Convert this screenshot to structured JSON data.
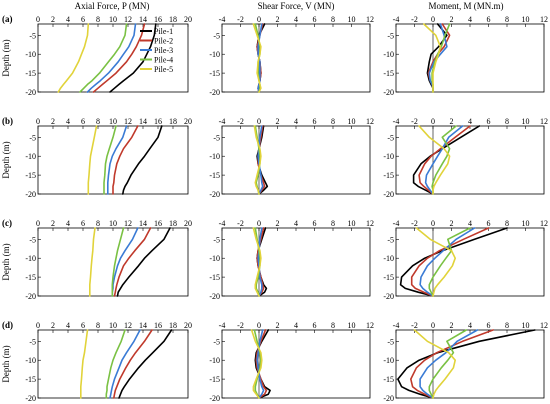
{
  "chart_data": {
    "type": "line",
    "column_titles": [
      "Axial Force, P (MN)",
      "Shear Force, V (MN)",
      "Moment, M (MN.m)"
    ],
    "row_labels": [
      "(a)",
      "(b)",
      "(c)",
      "(d)"
    ],
    "ylabel": "Depth (m)",
    "ylim": [
      -20,
      -2
    ],
    "yticks": [
      -5,
      -10,
      -15,
      -20
    ],
    "xlims": [
      [
        0,
        20
      ],
      [
        -4,
        12
      ],
      [
        -4,
        12
      ]
    ],
    "xticks": [
      [
        0,
        2,
        4,
        6,
        8,
        10,
        12,
        14,
        16,
        18,
        20
      ],
      [
        -4,
        -2,
        0,
        2,
        4,
        6,
        8,
        10,
        12
      ],
      [
        -4,
        -2,
        0,
        2,
        4,
        6,
        8,
        10,
        12
      ]
    ],
    "legend": {
      "position": "top-right",
      "entries": [
        "Pile-1",
        "Pile-2",
        "Pile-3",
        "Pile-4",
        "Pile-5"
      ],
      "colors": [
        "#000000",
        "#c0392b",
        "#3a7bd5",
        "#7ac143",
        "#e1d33a"
      ]
    },
    "depths": [
      -2,
      -5,
      -8,
      -10,
      -12,
      -15,
      -17,
      -18,
      -19,
      -20
    ],
    "panels": [
      {
        "row": "(a)",
        "quantity": "axial",
        "series": [
          {
            "name": "Pile-1",
            "x": [
              15.7,
              15.5,
              15.0,
              14.5,
              14.0,
              12.7,
              11.4,
              10.8,
              10.2,
              9.6
            ]
          },
          {
            "name": "Pile-2",
            "x": [
              14.2,
              13.8,
              13.1,
              12.5,
              11.8,
              10.4,
              9.2,
              8.6,
              8.0,
              7.4
            ]
          },
          {
            "name": "Pile-3",
            "x": [
              13.0,
              12.8,
              12.1,
              11.4,
              10.7,
              9.4,
              8.3,
              7.7,
              7.1,
              6.6
            ]
          },
          {
            "name": "Pile-4",
            "x": [
              11.8,
              11.6,
              10.9,
              10.2,
              9.4,
              8.2,
              7.2,
              6.6,
              6.1,
              5.6
            ]
          },
          {
            "name": "Pile-5",
            "x": [
              6.7,
              6.6,
              6.2,
              5.8,
              5.4,
              4.6,
              3.8,
              3.4,
              3.0,
              2.7
            ]
          }
        ]
      },
      {
        "row": "(a)",
        "quantity": "shear",
        "series": [
          {
            "name": "Pile-1",
            "x": [
              0.6,
              0.0,
              -0.2,
              -0.1,
              0.1,
              0.2,
              0.1,
              0.0,
              -0.1,
              0.0
            ]
          },
          {
            "name": "Pile-2",
            "x": [
              0.4,
              0.1,
              -0.2,
              -0.1,
              0.1,
              0.2,
              0.1,
              0.0,
              -0.1,
              0.0
            ]
          },
          {
            "name": "Pile-3",
            "x": [
              0.3,
              0.1,
              -0.1,
              -0.1,
              0.1,
              0.1,
              0.1,
              0.0,
              -0.1,
              0.0
            ]
          },
          {
            "name": "Pile-4",
            "x": [
              -0.4,
              -0.1,
              0.1,
              0.1,
              -0.1,
              -0.1,
              0.0,
              0.1,
              0.1,
              0.0
            ]
          },
          {
            "name": "Pile-5",
            "x": [
              -0.6,
              -0.2,
              0.2,
              0.1,
              -0.1,
              -0.2,
              0.0,
              0.1,
              0.2,
              0.0
            ]
          }
        ]
      },
      {
        "row": "(a)",
        "quantity": "moment",
        "series": [
          {
            "name": "Pile-1",
            "x": [
              0.5,
              1.5,
              0.6,
              -0.2,
              -0.4,
              -0.6,
              -0.4,
              -0.2,
              0.0,
              0.0
            ]
          },
          {
            "name": "Pile-2",
            "x": [
              1.0,
              1.8,
              1.2,
              0.5,
              0.0,
              -0.5,
              -0.3,
              -0.1,
              0.0,
              0.0
            ]
          },
          {
            "name": "Pile-3",
            "x": [
              0.8,
              1.2,
              1.5,
              0.8,
              0.1,
              -0.4,
              -0.3,
              -0.1,
              0.0,
              0.0
            ]
          },
          {
            "name": "Pile-4",
            "x": [
              1.8,
              1.3,
              0.9,
              0.5,
              0.2,
              -0.1,
              -0.1,
              0.0,
              0.0,
              0.0
            ]
          },
          {
            "name": "Pile-5",
            "x": [
              -1.0,
              0.3,
              0.8,
              0.6,
              0.3,
              0.0,
              0.0,
              0.0,
              0.0,
              0.0
            ]
          }
        ]
      },
      {
        "row": "(b)",
        "quantity": "axial",
        "series": [
          {
            "name": "Pile-1",
            "x": [
              16.5,
              16.0,
              14.9,
              14.2,
              13.4,
              12.4,
              11.9,
              11.6,
              11.4,
              11.3
            ]
          },
          {
            "name": "Pile-2",
            "x": [
              13.3,
              12.5,
              11.4,
              10.9,
              10.5,
              10.2,
              10.1,
              10.0,
              10.0,
              10.0
            ]
          },
          {
            "name": "Pile-3",
            "x": [
              11.8,
              11.3,
              10.4,
              9.9,
              9.6,
              9.4,
              9.3,
              9.3,
              9.3,
              9.3
            ]
          },
          {
            "name": "Pile-4",
            "x": [
              10.4,
              10.0,
              9.5,
              9.2,
              9.0,
              8.9,
              8.8,
              8.8,
              8.8,
              8.8
            ]
          },
          {
            "name": "Pile-5",
            "x": [
              7.8,
              7.5,
              7.2,
              7.0,
              6.9,
              6.8,
              6.7,
              6.7,
              6.7,
              6.7
            ]
          }
        ]
      },
      {
        "row": "(b)",
        "quantity": "shear",
        "series": [
          {
            "name": "Pile-1",
            "x": [
              0.5,
              0.3,
              0.0,
              -0.2,
              -0.1,
              0.3,
              0.7,
              0.9,
              0.5,
              0.0
            ]
          },
          {
            "name": "Pile-2",
            "x": [
              0.4,
              0.2,
              0.0,
              -0.1,
              -0.1,
              0.2,
              0.5,
              0.6,
              0.3,
              0.0
            ]
          },
          {
            "name": "Pile-3",
            "x": [
              0.3,
              0.1,
              0.0,
              -0.1,
              0.0,
              0.2,
              0.3,
              0.4,
              0.2,
              0.0
            ]
          },
          {
            "name": "Pile-4",
            "x": [
              -0.4,
              -0.2,
              0.0,
              0.1,
              0.1,
              -0.1,
              -0.3,
              -0.2,
              -0.1,
              0.0
            ]
          },
          {
            "name": "Pile-5",
            "x": [
              -0.5,
              -0.3,
              0.1,
              0.2,
              0.1,
              -0.2,
              -0.4,
              -0.3,
              -0.1,
              0.0
            ]
          }
        ]
      },
      {
        "row": "(b)",
        "quantity": "moment",
        "series": [
          {
            "name": "Pile-1",
            "x": [
              5.0,
              3.0,
              1.0,
              -0.3,
              -1.3,
              -2.1,
              -2.1,
              -1.6,
              -0.8,
              0.0
            ]
          },
          {
            "name": "Pile-2",
            "x": [
              4.0,
              2.4,
              0.8,
              -0.2,
              -0.9,
              -1.5,
              -1.4,
              -1.0,
              -0.5,
              0.0
            ]
          },
          {
            "name": "Pile-3",
            "x": [
              3.2,
              1.7,
              1.0,
              0.5,
              0.0,
              -0.7,
              -0.8,
              -0.6,
              -0.3,
              0.0
            ]
          },
          {
            "name": "Pile-4",
            "x": [
              2.5,
              1.0,
              1.8,
              1.5,
              1.0,
              0.3,
              0.0,
              -0.1,
              0.0,
              0.0
            ]
          },
          {
            "name": "Pile-5",
            "x": [
              -1.5,
              -0.4,
              1.2,
              1.8,
              1.6,
              0.8,
              0.3,
              0.1,
              0.0,
              0.0
            ]
          }
        ]
      },
      {
        "row": "(c)",
        "quantity": "axial",
        "series": [
          {
            "name": "Pile-1",
            "x": [
              17.6,
              16.8,
              15.2,
              14.2,
              13.4,
              12.1,
              11.3,
              11.0,
              10.7,
              10.6
            ]
          },
          {
            "name": "Pile-2",
            "x": [
              15.0,
              14.2,
              12.9,
              12.1,
              11.4,
              10.8,
              10.5,
              10.4,
              10.3,
              10.2
            ]
          },
          {
            "name": "Pile-3",
            "x": [
              13.3,
              12.6,
              11.6,
              11.0,
              10.6,
              10.2,
              10.0,
              10.0,
              9.9,
              9.9
            ]
          },
          {
            "name": "Pile-4",
            "x": [
              11.4,
              11.0,
              10.6,
              10.4,
              10.2,
              10.0,
              9.9,
              9.9,
              9.9,
              9.9
            ]
          },
          {
            "name": "Pile-5",
            "x": [
              7.6,
              7.4,
              7.3,
              7.2,
              7.1,
              7.0,
              6.9,
              6.9,
              6.9,
              6.9
            ]
          }
        ]
      },
      {
        "row": "(c)",
        "quantity": "shear",
        "series": [
          {
            "name": "Pile-1",
            "x": [
              0.7,
              0.3,
              -0.1,
              -0.2,
              -0.1,
              0.2,
              0.5,
              0.8,
              0.6,
              0.0
            ]
          },
          {
            "name": "Pile-2",
            "x": [
              0.5,
              0.2,
              -0.1,
              -0.2,
              -0.1,
              0.2,
              0.4,
              0.5,
              0.3,
              0.0
            ]
          },
          {
            "name": "Pile-3",
            "x": [
              0.3,
              0.1,
              0.0,
              -0.1,
              0.0,
              0.1,
              0.3,
              0.3,
              0.2,
              0.0
            ]
          },
          {
            "name": "Pile-4",
            "x": [
              -0.4,
              -0.2,
              0.0,
              0.1,
              0.1,
              -0.1,
              -0.3,
              -0.3,
              -0.1,
              0.0
            ]
          },
          {
            "name": "Pile-5",
            "x": [
              -0.6,
              -0.3,
              0.1,
              0.2,
              0.1,
              -0.2,
              -0.4,
              -0.4,
              -0.2,
              0.0
            ]
          }
        ]
      },
      {
        "row": "(c)",
        "quantity": "moment",
        "series": [
          {
            "name": "Pile-1",
            "x": [
              8.0,
              4.5,
              1.0,
              -0.9,
              -2.2,
              -3.4,
              -3.5,
              -3.0,
              -1.6,
              0.0
            ]
          },
          {
            "name": "Pile-2",
            "x": [
              6.0,
              3.3,
              0.7,
              -0.6,
              -1.5,
              -2.3,
              -2.3,
              -1.9,
              -1.0,
              0.0
            ]
          },
          {
            "name": "Pile-3",
            "x": [
              4.5,
              2.5,
              1.1,
              0.2,
              -0.6,
              -1.3,
              -1.4,
              -1.1,
              -0.6,
              0.0
            ]
          },
          {
            "name": "Pile-4",
            "x": [
              4.0,
              1.6,
              2.0,
              1.4,
              0.8,
              0.0,
              -0.4,
              -0.4,
              -0.2,
              0.0
            ]
          },
          {
            "name": "Pile-5",
            "x": [
              -1.8,
              -0.3,
              2.0,
              2.4,
              2.1,
              1.2,
              0.5,
              0.2,
              0.1,
              0.0
            ]
          }
        ]
      },
      {
        "row": "(d)",
        "quantity": "axial",
        "series": [
          {
            "name": "Pile-1",
            "x": [
              17.8,
              16.8,
              15.3,
              14.3,
              13.4,
              12.2,
              11.5,
              11.2,
              11.0,
              10.8
            ]
          },
          {
            "name": "Pile-2",
            "x": [
              15.2,
              14.2,
              13.0,
              12.3,
              11.7,
              10.9,
              10.5,
              10.3,
              10.2,
              10.1
            ]
          },
          {
            "name": "Pile-3",
            "x": [
              13.6,
              12.8,
              11.8,
              11.2,
              10.8,
              10.2,
              9.9,
              9.8,
              9.7,
              9.6
            ]
          },
          {
            "name": "Pile-4",
            "x": [
              11.6,
              11.1,
              10.4,
              10.0,
              9.7,
              9.4,
              9.2,
              9.2,
              9.1,
              9.1
            ]
          },
          {
            "name": "Pile-5",
            "x": [
              6.6,
              6.4,
              6.2,
              6.0,
              5.9,
              5.8,
              5.7,
              5.7,
              5.7,
              5.7
            ]
          }
        ]
      },
      {
        "row": "(d)",
        "quantity": "shear",
        "series": [
          {
            "name": "Pile-1",
            "x": [
              1.0,
              0.3,
              -0.3,
              -0.4,
              -0.3,
              0.2,
              0.6,
              1.2,
              1.0,
              0.0
            ]
          },
          {
            "name": "Pile-2",
            "x": [
              0.7,
              0.2,
              -0.2,
              -0.3,
              -0.2,
              0.2,
              0.5,
              0.8,
              0.6,
              0.0
            ]
          },
          {
            "name": "Pile-3",
            "x": [
              0.4,
              0.1,
              -0.1,
              -0.2,
              -0.1,
              0.1,
              0.3,
              0.5,
              0.3,
              0.0
            ]
          },
          {
            "name": "Pile-4",
            "x": [
              -0.5,
              -0.2,
              0.1,
              0.2,
              0.1,
              -0.2,
              -0.4,
              -0.4,
              -0.2,
              0.0
            ]
          },
          {
            "name": "Pile-5",
            "x": [
              -0.8,
              -0.4,
              0.2,
              0.3,
              0.2,
              -0.3,
              -0.6,
              -0.6,
              -0.3,
              0.0
            ]
          }
        ]
      },
      {
        "row": "(d)",
        "quantity": "moment",
        "series": [
          {
            "name": "Pile-1",
            "x": [
              11.0,
              5.0,
              0.5,
              -1.5,
              -2.8,
              -3.8,
              -3.4,
              -2.6,
              -1.4,
              0.0
            ]
          },
          {
            "name": "Pile-2",
            "x": [
              6.5,
              3.2,
              0.4,
              -0.9,
              -1.8,
              -2.4,
              -2.2,
              -1.7,
              -0.9,
              0.0
            ]
          },
          {
            "name": "Pile-3",
            "x": [
              4.8,
              2.6,
              1.4,
              0.3,
              -0.6,
              -1.4,
              -1.4,
              -1.1,
              -0.6,
              0.0
            ]
          },
          {
            "name": "Pile-4",
            "x": [
              3.6,
              1.5,
              2.2,
              1.6,
              0.9,
              0.0,
              -0.4,
              -0.4,
              -0.2,
              0.0
            ]
          },
          {
            "name": "Pile-5",
            "x": [
              -2.0,
              -0.6,
              1.7,
              2.4,
              2.2,
              1.3,
              0.6,
              0.3,
              0.1,
              0.0
            ]
          }
        ]
      }
    ]
  }
}
